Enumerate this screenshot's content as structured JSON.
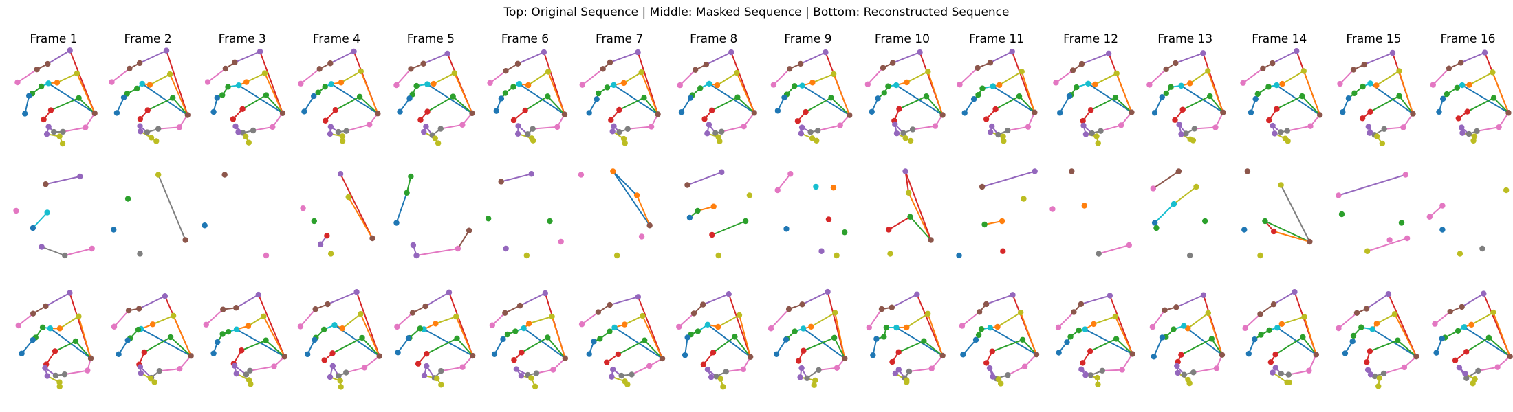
{
  "chart_data": {
    "type": "scatter",
    "title": "Top: Original Sequence | Middle: Masked Sequence | Bottom: Reconstructed Sequence",
    "frames": [
      "Frame 1",
      "Frame 2",
      "Frame 3",
      "Frame 4",
      "Frame 5",
      "Frame 6",
      "Frame 7",
      "Frame 8",
      "Frame 9",
      "Frame 10",
      "Frame 11",
      "Frame 12",
      "Frame 13",
      "Frame 14",
      "Frame 15",
      "Frame 16"
    ],
    "rows": [
      "Original Sequence",
      "Masked Sequence",
      "Reconstructed Sequence"
    ],
    "grid": false,
    "axes_visible": false,
    "colors": {
      "blue": "#1f77b4",
      "orange": "#ff7f0e",
      "green": "#2ca02c",
      "red": "#d62728",
      "purple": "#9467bd",
      "brown": "#8c564b",
      "pink": "#e377c2",
      "gray": "#7f7f7f",
      "olive": "#bcbd22",
      "cyan": "#17becf"
    },
    "base_skeleton": {
      "points": [
        {
          "x": 0.72,
          "y": 0.03,
          "c": "purple"
        },
        {
          "x": 0.4,
          "y": 0.17,
          "c": "brown"
        },
        {
          "x": 0.27,
          "y": 0.23,
          "c": "brown"
        },
        {
          "x": 0.06,
          "y": 0.4,
          "c": "pink"
        },
        {
          "x": 0.8,
          "y": 0.27,
          "c": "olive"
        },
        {
          "x": 0.54,
          "y": 0.4,
          "c": "orange"
        },
        {
          "x": 0.45,
          "y": 0.41,
          "c": "cyan"
        },
        {
          "x": 0.34,
          "y": 0.44,
          "c": "green"
        },
        {
          "x": 0.25,
          "y": 0.52,
          "c": "green"
        },
        {
          "x": 0.21,
          "y": 0.56,
          "c": "blue"
        },
        {
          "x": 0.12,
          "y": 0.73,
          "c": "blue"
        },
        {
          "x": 0.8,
          "y": 0.55,
          "c": "green"
        },
        {
          "x": 0.48,
          "y": 0.71,
          "c": "red"
        },
        {
          "x": 0.38,
          "y": 0.82,
          "c": "red"
        },
        {
          "x": 1.0,
          "y": 0.75,
          "c": "brown"
        },
        {
          "x": 0.89,
          "y": 0.89,
          "c": "pink"
        },
        {
          "x": 0.62,
          "y": 0.94,
          "c": "gray"
        },
        {
          "x": 0.51,
          "y": 0.98,
          "c": "gray"
        },
        {
          "x": 0.42,
          "y": 0.89,
          "c": "purple"
        },
        {
          "x": 0.43,
          "y": 0.97,
          "c": "purple"
        },
        {
          "x": 0.56,
          "y": 1.03,
          "c": "olive"
        },
        {
          "x": 0.59,
          "y": 1.08,
          "c": "olive"
        }
      ],
      "edges": [
        {
          "a": 0,
          "b": 1,
          "c": "purple"
        },
        {
          "a": 1,
          "b": 2,
          "c": "brown"
        },
        {
          "a": 2,
          "b": 3,
          "c": "pink"
        },
        {
          "a": 0,
          "b": 14,
          "c": "red"
        },
        {
          "a": 4,
          "b": 5,
          "c": "olive"
        },
        {
          "a": 4,
          "b": 14,
          "c": "orange"
        },
        {
          "a": 5,
          "b": 6,
          "c": "orange"
        },
        {
          "a": 6,
          "b": 7,
          "c": "cyan"
        },
        {
          "a": 6,
          "b": 14,
          "c": "blue"
        },
        {
          "a": 7,
          "b": 8,
          "c": "green"
        },
        {
          "a": 8,
          "b": 9,
          "c": "green"
        },
        {
          "a": 9,
          "b": 10,
          "c": "blue"
        },
        {
          "a": 11,
          "b": 12,
          "c": "green"
        },
        {
          "a": 11,
          "b": 14,
          "c": "green"
        },
        {
          "a": 12,
          "b": 13,
          "c": "red"
        },
        {
          "a": 14,
          "b": 15,
          "c": "pink"
        },
        {
          "a": 15,
          "b": 16,
          "c": "pink"
        },
        {
          "a": 16,
          "b": 17,
          "c": "gray"
        },
        {
          "a": 17,
          "b": 18,
          "c": "purple"
        },
        {
          "a": 18,
          "b": 19,
          "c": "purple"
        },
        {
          "a": 19,
          "b": 20,
          "c": "olive"
        },
        {
          "a": 20,
          "b": 21,
          "c": "olive"
        }
      ]
    },
    "masked_frames": [
      {
        "points": [
          [
            0.4,
            0.17,
            "brown"
          ],
          [
            0.83,
            0.08,
            "purple"
          ],
          [
            0.03,
            0.48,
            "pink"
          ],
          [
            0.42,
            0.5,
            "cyan"
          ],
          [
            0.24,
            0.68,
            "blue"
          ],
          [
            0.35,
            0.9,
            "purple"
          ],
          [
            0.64,
            1.0,
            "gray"
          ],
          [
            0.98,
            0.92,
            "pink"
          ]
        ],
        "edges": [
          [
            0,
            1,
            "purple"
          ],
          [
            3,
            4,
            "cyan"
          ],
          [
            5,
            6,
            "gray"
          ],
          [
            6,
            7,
            "pink"
          ]
        ]
      },
      {
        "points": [
          [
            0.63,
            0.06,
            "olive"
          ],
          [
            0.25,
            0.34,
            "green"
          ],
          [
            0.07,
            0.7,
            "blue"
          ],
          [
            0.97,
            0.82,
            "brown"
          ],
          [
            0.4,
            0.98,
            "gray"
          ]
        ],
        "edges": [
          [
            0,
            3,
            "gray"
          ]
        ]
      },
      {
        "points": [
          [
            0.28,
            0.06,
            "brown"
          ],
          [
            0.03,
            0.65,
            "blue"
          ],
          [
            0.8,
            1.0,
            "pink"
          ]
        ],
        "edges": []
      },
      {
        "points": [
          [
            0.55,
            0.05,
            "purple"
          ],
          [
            0.65,
            0.32,
            "olive"
          ],
          [
            0.95,
            0.8,
            "brown"
          ],
          [
            0.08,
            0.45,
            "pink"
          ],
          [
            0.22,
            0.6,
            "green"
          ],
          [
            0.38,
            0.77,
            "red"
          ],
          [
            0.3,
            0.87,
            "purple"
          ],
          [
            0.43,
            0.98,
            "olive"
          ]
        ],
        "edges": [
          [
            0,
            2,
            "red"
          ],
          [
            1,
            2,
            "orange"
          ],
          [
            5,
            6,
            "purple"
          ]
        ]
      },
      {
        "points": [
          [
            0.25,
            0.08,
            "green"
          ],
          [
            0.2,
            0.27,
            "green"
          ],
          [
            0.07,
            0.62,
            "blue"
          ],
          [
            0.28,
            0.88,
            "purple"
          ],
          [
            0.32,
            1.0,
            "purple"
          ],
          [
            0.84,
            0.92,
            "pink"
          ],
          [
            0.98,
            0.71,
            "brown"
          ]
        ],
        "edges": [
          [
            0,
            1,
            "green"
          ],
          [
            1,
            2,
            "blue"
          ],
          [
            3,
            4,
            "purple"
          ],
          [
            4,
            5,
            "pink"
          ],
          [
            5,
            6,
            "brown"
          ]
        ]
      },
      {
        "points": [
          [
            0.2,
            0.14,
            "brown"
          ],
          [
            0.58,
            0.05,
            "purple"
          ],
          [
            0.04,
            0.57,
            "green"
          ],
          [
            0.81,
            0.6,
            "green"
          ],
          [
            0.26,
            0.92,
            "purple"
          ],
          [
            0.52,
            1.0,
            "olive"
          ],
          [
            0.95,
            0.84,
            "pink"
          ]
        ],
        "edges": [
          [
            0,
            1,
            "purple"
          ]
        ]
      },
      {
        "points": [
          [
            0.02,
            0.06,
            "pink"
          ],
          [
            0.42,
            0.02,
            "orange"
          ],
          [
            0.72,
            0.3,
            "orange"
          ],
          [
            0.88,
            0.65,
            "brown"
          ],
          [
            0.78,
            0.78,
            "pink"
          ],
          [
            0.47,
            1.0,
            "olive"
          ]
        ],
        "edges": [
          [
            1,
            2,
            "blue"
          ],
          [
            1,
            3,
            "blue"
          ],
          [
            2,
            3,
            "orange"
          ]
        ]
      },
      {
        "points": [
          [
            0.17,
            0.18,
            "brown"
          ],
          [
            0.6,
            0.03,
            "purple"
          ],
          [
            0.95,
            0.3,
            "olive"
          ],
          [
            0.5,
            0.43,
            "orange"
          ],
          [
            0.3,
            0.48,
            "green"
          ],
          [
            0.2,
            0.56,
            "blue"
          ],
          [
            0.48,
            0.76,
            "red"
          ],
          [
            0.9,
            0.6,
            "green"
          ],
          [
            0.56,
            1.0,
            "olive"
          ]
        ],
        "edges": [
          [
            0,
            1,
            "purple"
          ],
          [
            3,
            4,
            "orange"
          ],
          [
            4,
            5,
            "green"
          ],
          [
            6,
            7,
            "green"
          ]
        ]
      },
      {
        "points": [
          [
            0.12,
            0.24,
            "pink"
          ],
          [
            0.28,
            0.05,
            "pink"
          ],
          [
            0.6,
            0.2,
            "cyan"
          ],
          [
            0.82,
            0.21,
            "orange"
          ],
          [
            0.76,
            0.58,
            "red"
          ],
          [
            0.23,
            0.69,
            "blue"
          ],
          [
            0.96,
            0.73,
            "green"
          ],
          [
            0.67,
            0.95,
            "purple"
          ],
          [
            0.86,
            1.0,
            "olive"
          ]
        ],
        "edges": [
          [
            0,
            1,
            "pink"
          ]
        ]
      },
      {
        "points": [
          [
            0.54,
            0.02,
            "purple"
          ],
          [
            0.58,
            0.27,
            "olive"
          ],
          [
            0.86,
            0.82,
            "brown"
          ],
          [
            0.33,
            0.7,
            "red"
          ],
          [
            0.6,
            0.55,
            "green"
          ],
          [
            0.35,
            0.98,
            "olive"
          ]
        ],
        "edges": [
          [
            0,
            1,
            "red"
          ],
          [
            1,
            2,
            "orange"
          ],
          [
            0,
            2,
            "red"
          ],
          [
            3,
            4,
            "red"
          ],
          [
            4,
            2,
            "green"
          ]
        ]
      },
      {
        "points": [
          [
            0.32,
            0.2,
            "brown"
          ],
          [
            0.98,
            0.02,
            "purple"
          ],
          [
            0.84,
            0.34,
            "olive"
          ],
          [
            0.35,
            0.64,
            "green"
          ],
          [
            0.57,
            0.6,
            "orange"
          ],
          [
            0.58,
            0.95,
            "red"
          ],
          [
            0.03,
            1.0,
            "blue"
          ]
        ],
        "edges": [
          [
            0,
            1,
            "purple"
          ],
          [
            3,
            4,
            "orange"
          ]
        ]
      },
      {
        "points": [
          [
            0.26,
            0.02,
            "brown"
          ],
          [
            0.02,
            0.46,
            "pink"
          ],
          [
            0.42,
            0.42,
            "orange"
          ],
          [
            0.6,
            0.98,
            "gray"
          ],
          [
            0.98,
            0.88,
            "pink"
          ]
        ],
        "edges": [
          [
            3,
            4,
            "pink"
          ]
        ]
      },
      {
        "points": [
          [
            0.1,
            0.22,
            "pink"
          ],
          [
            0.42,
            0.02,
            "brown"
          ],
          [
            0.36,
            0.4,
            "cyan"
          ],
          [
            0.64,
            0.2,
            "olive"
          ],
          [
            0.12,
            0.62,
            "blue"
          ],
          [
            0.14,
            0.68,
            "green"
          ],
          [
            0.75,
            0.6,
            "green"
          ],
          [
            0.56,
            1.0,
            "gray"
          ]
        ],
        "edges": [
          [
            0,
            1,
            "brown"
          ],
          [
            2,
            3,
            "olive"
          ],
          [
            2,
            4,
            "cyan"
          ],
          [
            4,
            5,
            "green"
          ]
        ]
      },
      {
        "points": [
          [
            0.1,
            0.02,
            "brown"
          ],
          [
            0.32,
            0.6,
            "green"
          ],
          [
            0.06,
            0.7,
            "blue"
          ],
          [
            0.43,
            0.72,
            "red"
          ],
          [
            0.52,
            0.18,
            "olive"
          ],
          [
            0.88,
            0.84,
            "brown"
          ],
          [
            0.26,
            1.0,
            "olive"
          ]
        ],
        "edges": [
          [
            1,
            3,
            "red"
          ],
          [
            4,
            5,
            "gray"
          ],
          [
            1,
            5,
            "green"
          ],
          [
            3,
            5,
            "orange"
          ]
        ]
      },
      {
        "points": [
          [
            0.06,
            0.3,
            "pink"
          ],
          [
            0.9,
            0.06,
            "pink"
          ],
          [
            0.1,
            0.52,
            "green"
          ],
          [
            0.85,
            0.62,
            "green"
          ],
          [
            0.42,
            0.95,
            "olive"
          ],
          [
            0.7,
            0.82,
            "pink"
          ],
          [
            0.92,
            0.8,
            "pink"
          ]
        ],
        "edges": [
          [
            0,
            1,
            "purple"
          ],
          [
            4,
            6,
            "pink"
          ]
        ]
      },
      {
        "points": [
          [
            0.18,
            0.42,
            "pink"
          ],
          [
            0.18,
            0.7,
            "blue"
          ],
          [
            0.02,
            0.55,
            "pink"
          ],
          [
            0.98,
            0.24,
            "olive"
          ],
          [
            0.68,
            0.92,
            "gray"
          ],
          [
            0.4,
            0.98,
            "olive"
          ]
        ],
        "edges": [
          [
            0,
            2,
            "pink"
          ]
        ]
      }
    ],
    "reconstructed_variation": "same skeleton with small per-frame jitter"
  }
}
